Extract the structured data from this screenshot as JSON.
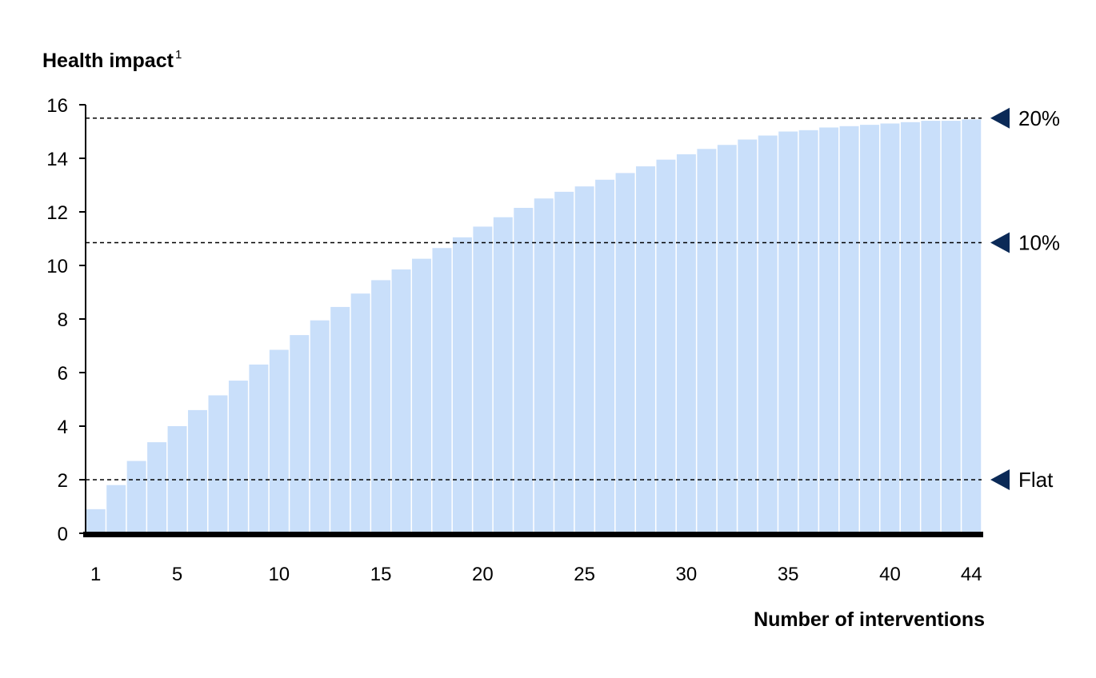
{
  "chart_data": {
    "type": "bar",
    "ylabel": "Health impact",
    "ylabel_superscript": "1",
    "xlabel": "Number of interventions",
    "ylim": [
      0,
      16
    ],
    "y_ticks": [
      "0",
      "2",
      "4",
      "6",
      "8",
      "10",
      "12",
      "14",
      "16"
    ],
    "x_tick_labels": [
      {
        "pos": 1,
        "label": "1"
      },
      {
        "pos": 5,
        "label": "5"
      },
      {
        "pos": 10,
        "label": "10"
      },
      {
        "pos": 15,
        "label": "15"
      },
      {
        "pos": 20,
        "label": "20"
      },
      {
        "pos": 25,
        "label": "25"
      },
      {
        "pos": 30,
        "label": "30"
      },
      {
        "pos": 35,
        "label": "35"
      },
      {
        "pos": 40,
        "label": "40"
      },
      {
        "pos": 44,
        "label": "44"
      }
    ],
    "categories": [
      1,
      2,
      3,
      4,
      5,
      6,
      7,
      8,
      9,
      10,
      11,
      12,
      13,
      14,
      15,
      16,
      17,
      18,
      19,
      20,
      21,
      22,
      23,
      24,
      25,
      26,
      27,
      28,
      29,
      30,
      31,
      32,
      33,
      34,
      35,
      36,
      37,
      38,
      39,
      40,
      41,
      42,
      43,
      44
    ],
    "values": [
      0.9,
      1.8,
      2.7,
      3.4,
      4.0,
      4.6,
      5.15,
      5.7,
      6.3,
      6.85,
      7.4,
      7.95,
      8.45,
      8.95,
      9.45,
      9.85,
      10.25,
      10.65,
      11.05,
      11.45,
      11.8,
      12.15,
      12.5,
      12.75,
      12.95,
      13.2,
      13.45,
      13.7,
      13.95,
      14.15,
      14.35,
      14.5,
      14.7,
      14.85,
      15.0,
      15.05,
      15.15,
      15.2,
      15.25,
      15.3,
      15.35,
      15.4,
      15.4,
      15.45
    ],
    "reference_lines": [
      {
        "label": "20%",
        "value": 15.5
      },
      {
        "label": "10%",
        "value": 10.85
      },
      {
        "label": "Flat",
        "value": 2.0
      }
    ],
    "grid": false,
    "colors": {
      "bar": "#c9dffa",
      "bar_separator": "#ffffff",
      "axis": "#000000",
      "marker": "#0b2a57",
      "reference_line": "#000000"
    }
  }
}
